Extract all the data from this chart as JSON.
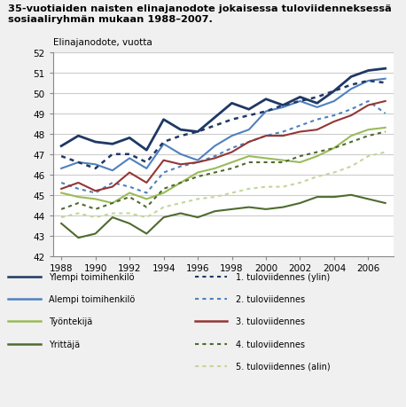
{
  "title": "35-vuotiaiden naisten elinajanodote jokaisessa tuloviidenneksessä\nsosiaaliryhmän mukaan 1988–2007.",
  "ylabel": "Elinajanodote, vuotta",
  "years": [
    1988,
    1989,
    1990,
    1991,
    1992,
    1993,
    1994,
    1995,
    1996,
    1997,
    1998,
    1999,
    2000,
    2001,
    2002,
    2003,
    2004,
    2005,
    2006,
    2007
  ],
  "ylim": [
    42,
    52
  ],
  "yticks": [
    42,
    43,
    44,
    45,
    46,
    47,
    48,
    49,
    50,
    51,
    52
  ],
  "xticks": [
    1988,
    1990,
    1992,
    1994,
    1996,
    1998,
    2000,
    2002,
    2004,
    2006
  ],
  "series": {
    "Ylempi toimihenkilö": {
      "color": "#1f3864",
      "linestyle": "solid",
      "linewidth": 2.0,
      "values": [
        47.4,
        47.9,
        47.6,
        47.5,
        47.8,
        47.2,
        48.7,
        48.2,
        48.1,
        48.8,
        49.5,
        49.2,
        49.7,
        49.4,
        49.8,
        49.5,
        50.1,
        50.8,
        51.1,
        51.2
      ]
    },
    "Alempi toimihenkilö": {
      "color": "#4f81bd",
      "linestyle": "solid",
      "linewidth": 1.5,
      "values": [
        46.3,
        46.6,
        46.5,
        46.2,
        46.8,
        46.3,
        47.5,
        47.0,
        46.7,
        47.4,
        47.9,
        48.2,
        49.1,
        49.3,
        49.6,
        49.3,
        49.6,
        50.2,
        50.6,
        50.7
      ]
    },
    "Työntekijä": {
      "color": "#9bbb59",
      "linestyle": "solid",
      "linewidth": 1.5,
      "values": [
        45.1,
        44.9,
        44.8,
        44.6,
        45.1,
        44.8,
        45.1,
        45.6,
        46.1,
        46.3,
        46.6,
        46.9,
        46.8,
        46.7,
        46.6,
        46.9,
        47.3,
        47.9,
        48.2,
        48.3
      ]
    },
    "Yrittäjä": {
      "color": "#4e6b30",
      "linestyle": "solid",
      "linewidth": 1.5,
      "values": [
        43.6,
        42.9,
        43.1,
        43.9,
        43.6,
        43.1,
        43.9,
        44.1,
        43.9,
        44.2,
        44.3,
        44.4,
        44.3,
        44.4,
        44.6,
        44.9,
        44.9,
        45.0,
        44.8,
        44.6
      ]
    },
    "1. tuloviidennes (ylin)": {
      "color": "#1f3864",
      "linestyle": "dotted",
      "linewidth": 1.8,
      "values": [
        46.9,
        46.6,
        46.3,
        47.0,
        47.0,
        46.6,
        47.6,
        47.9,
        48.1,
        48.4,
        48.7,
        48.9,
        49.1,
        49.4,
        49.6,
        49.8,
        50.1,
        50.4,
        50.6,
        50.5
      ]
    },
    "2. tuloviidennes": {
      "color": "#4f81bd",
      "linestyle": "dotted",
      "linewidth": 1.5,
      "values": [
        45.6,
        45.3,
        45.1,
        45.6,
        45.4,
        45.1,
        46.1,
        46.4,
        46.6,
        46.9,
        47.3,
        47.6,
        47.9,
        48.1,
        48.4,
        48.7,
        48.9,
        49.2,
        49.6,
        49.0
      ]
    },
    "3. tuloviidennes": {
      "color": "#943634",
      "linestyle": "solid",
      "linewidth": 1.5,
      "values": [
        45.3,
        45.6,
        45.2,
        45.4,
        46.1,
        45.6,
        46.7,
        46.5,
        46.6,
        46.8,
        47.1,
        47.6,
        47.9,
        47.9,
        48.1,
        48.2,
        48.6,
        48.9,
        49.4,
        49.6
      ]
    },
    "4. tuloviidennes": {
      "color": "#4e6b30",
      "linestyle": "dotted",
      "linewidth": 1.5,
      "values": [
        44.3,
        44.6,
        44.3,
        44.6,
        44.9,
        44.4,
        45.3,
        45.6,
        45.9,
        46.1,
        46.3,
        46.6,
        46.6,
        46.6,
        46.9,
        47.1,
        47.3,
        47.6,
        47.9,
        48.1
      ]
    },
    "5. tuloviidennes (alin)": {
      "color": "#c3d69b",
      "linestyle": "dotted",
      "linewidth": 1.5,
      "values": [
        43.9,
        44.1,
        43.9,
        44.1,
        44.1,
        43.9,
        44.4,
        44.6,
        44.8,
        44.9,
        45.1,
        45.3,
        45.4,
        45.4,
        45.6,
        45.9,
        46.1,
        46.4,
        46.9,
        47.1
      ]
    }
  },
  "bg_color": "#f0f0f0",
  "plot_bg_color": "#ffffff",
  "legend_left": [
    {
      "label": "Ylempi toimihenkilö",
      "color": "#1f3864",
      "ls": "solid"
    },
    {
      "label": "Alempi toimihenkilö",
      "color": "#4f81bd",
      "ls": "solid"
    },
    {
      "label": "Työntekijä",
      "color": "#9bbb59",
      "ls": "solid"
    },
    {
      "label": "Yrittäjä",
      "color": "#4e6b30",
      "ls": "solid"
    }
  ],
  "legend_right": [
    {
      "label": "1. tuloviidennes (ylin)",
      "color": "#1f3864",
      "ls": "dotted"
    },
    {
      "label": "2. tuloviidennes",
      "color": "#4f81bd",
      "ls": "dotted"
    },
    {
      "label": "3. tuloviidennes",
      "color": "#943634",
      "ls": "solid"
    },
    {
      "label": "4. tuloviidennes",
      "color": "#4e6b30",
      "ls": "dotted"
    },
    {
      "label": "5. tuloviidennes (alin)",
      "color": "#c3d69b",
      "ls": "dotted"
    }
  ]
}
